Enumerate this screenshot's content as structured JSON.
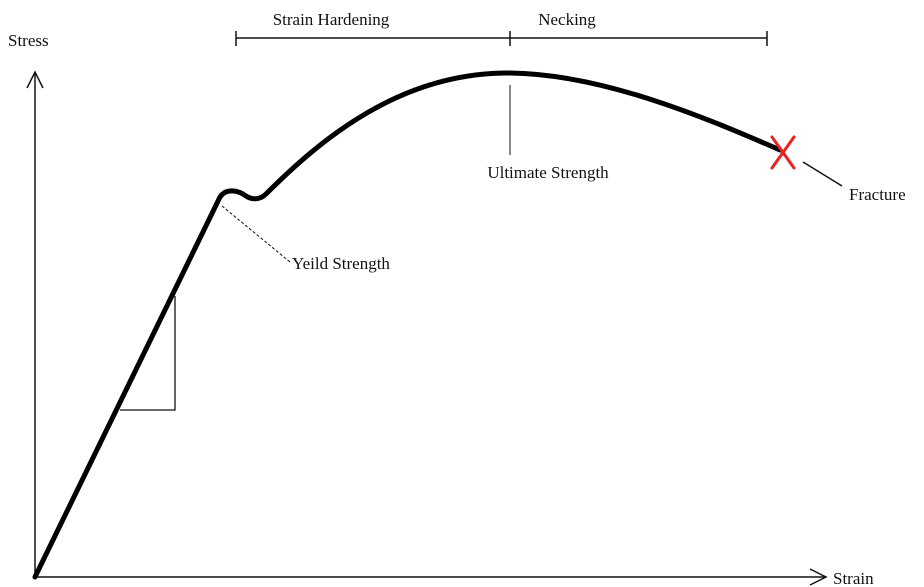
{
  "axes": {
    "y_label": "Stress",
    "x_label": "Strain"
  },
  "regions": [
    {
      "label": "Strain Hardening"
    },
    {
      "label": "Necking"
    }
  ],
  "annotations": [
    {
      "label": "Ultimate Strength"
    },
    {
      "label": "Yeild Strength"
    },
    {
      "label": "Fracture"
    }
  ]
}
